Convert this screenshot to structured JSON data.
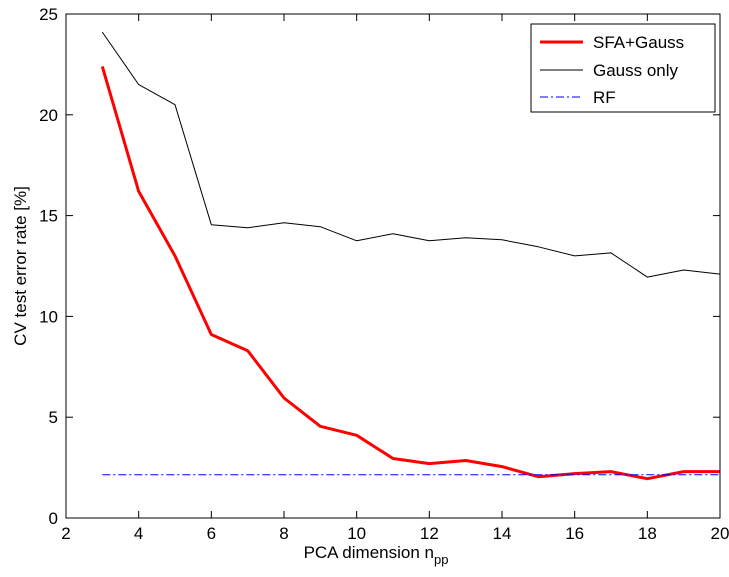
{
  "chart_data": {
    "type": "line",
    "title": "",
    "xlabel": "PCA dimension n",
    "xlabel_subscript": "pp",
    "ylabel": "CV test error rate [%]",
    "xlim": [
      2,
      20
    ],
    "ylim": [
      0,
      25
    ],
    "xticks": [
      2,
      4,
      6,
      8,
      10,
      12,
      14,
      16,
      18,
      20
    ],
    "yticks": [
      0,
      5,
      10,
      15,
      20,
      25
    ],
    "grid": false,
    "legend_position": "top-right",
    "series": [
      {
        "name": "SFA+Gauss",
        "color": "#ff0000",
        "style": "solid-thick",
        "x": [
          3,
          4,
          5,
          6,
          7,
          8,
          9,
          10,
          11,
          12,
          13,
          14,
          15,
          16,
          17,
          18,
          19,
          20
        ],
        "y": [
          22.4,
          16.2,
          13.0,
          9.1,
          8.3,
          5.95,
          4.55,
          4.1,
          2.95,
          2.7,
          2.85,
          2.55,
          2.05,
          2.2,
          2.3,
          1.95,
          2.3,
          2.3
        ]
      },
      {
        "name": "Gauss only",
        "color": "#000000",
        "style": "solid-thin",
        "x": [
          3,
          4,
          5,
          6,
          7,
          8,
          9,
          10,
          11,
          12,
          13,
          14,
          15,
          16,
          17,
          18,
          19,
          20
        ],
        "y": [
          24.1,
          21.5,
          20.5,
          14.55,
          14.4,
          14.65,
          14.45,
          13.75,
          14.1,
          13.75,
          13.9,
          13.8,
          13.45,
          13.0,
          13.15,
          11.95,
          12.3,
          12.1
        ]
      },
      {
        "name": "RF",
        "color": "#0000ff",
        "style": "dash-dot",
        "x": [
          3,
          20
        ],
        "y": [
          2.15,
          2.15
        ]
      }
    ]
  }
}
